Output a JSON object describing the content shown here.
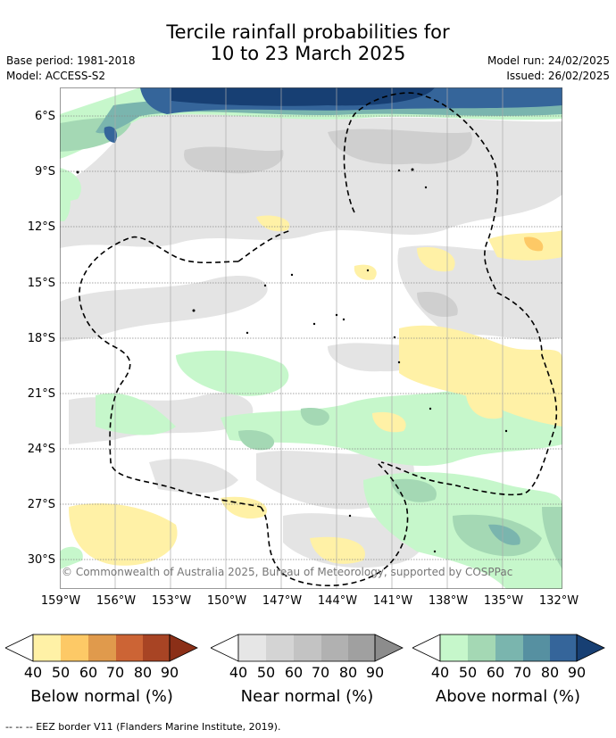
{
  "title": {
    "line1": "Tercile rainfall probabilities for",
    "line2": "10 to 23 March 2025"
  },
  "meta_left": {
    "base_period": "Base period: 1981-2018",
    "model": "Model: ACCESS-S2"
  },
  "meta_right": {
    "model_run": "Model run: 24/02/2025",
    "issued": "Issued: 26/02/2025"
  },
  "map": {
    "lat_labels": [
      "6°S",
      "9°S",
      "12°S",
      "15°S",
      "18°S",
      "21°S",
      "24°S",
      "27°S",
      "30°S"
    ],
    "lon_labels": [
      "159°W",
      "156°W",
      "153°W",
      "150°W",
      "147°W",
      "144°W",
      "141°W",
      "138°W",
      "135°W",
      "132°W"
    ],
    "copyright": "© Commonwealth of Australia 2025, Bureau of Meteorology, supported by COSPPac",
    "grid": true
  },
  "colorbars": [
    {
      "label": "Below normal (%)",
      "ticks": [
        "40",
        "50",
        "60",
        "70",
        "80",
        "90"
      ],
      "colors": [
        "#fff1a6",
        "#fdc966",
        "#e09a4c",
        "#cc6435",
        "#a84424",
        "#8b2f17"
      ]
    },
    {
      "label": "Near normal (%)",
      "ticks": [
        "40",
        "50",
        "60",
        "70",
        "80",
        "90"
      ],
      "colors": [
        "#e6e6e6",
        "#d4d4d4",
        "#c3c3c3",
        "#b1b1b1",
        "#a0a0a0",
        "#8c8c8c"
      ]
    },
    {
      "label": "Above normal (%)",
      "ticks": [
        "40",
        "50",
        "60",
        "70",
        "80",
        "90"
      ],
      "colors": [
        "#c6f7cb",
        "#a4d8b4",
        "#7ab5ae",
        "#5690a1",
        "#35659a",
        "#173f73"
      ]
    }
  ],
  "footer": "--  --  -- EEZ border V11 (Flanders Marine Institute, 2019)."
}
